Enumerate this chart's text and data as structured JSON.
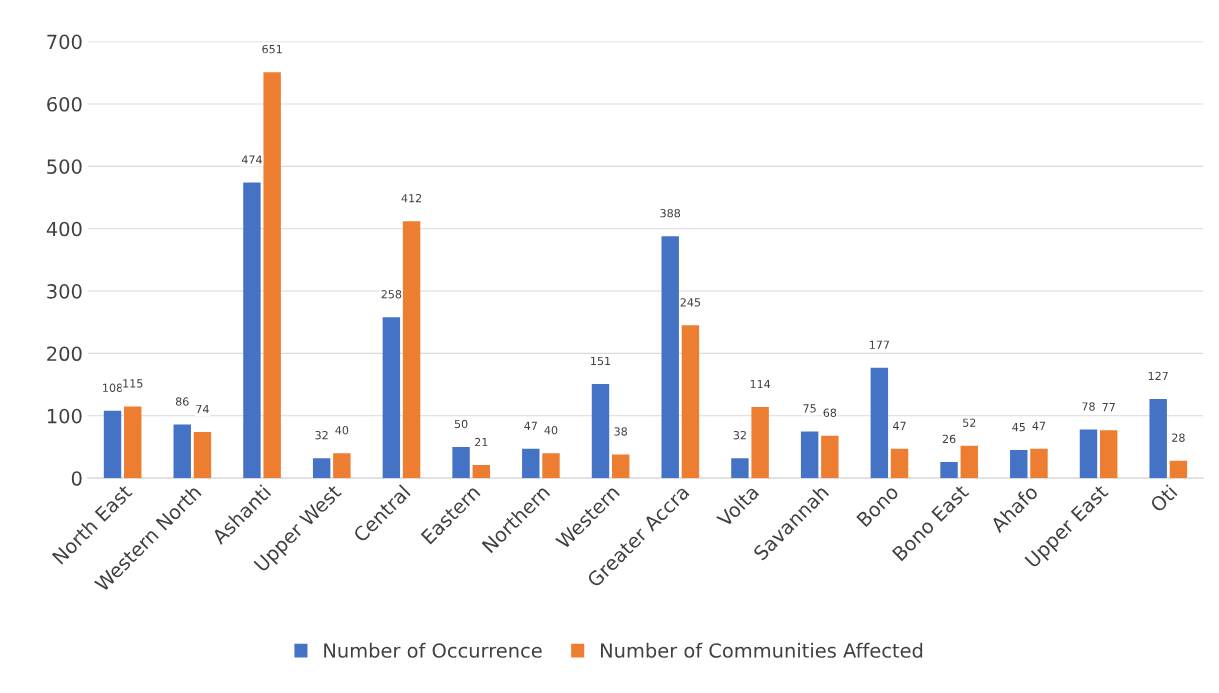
{
  "chart_data": {
    "type": "bar",
    "categories": [
      "North East",
      "Western North",
      "Ashanti",
      "Upper West",
      "Central",
      "Eastern",
      "Northern",
      "Western",
      "Greater Accra",
      "Volta",
      "Savannah",
      "Bono",
      "Bono East",
      "Ahafo",
      "Upper East",
      "Oti"
    ],
    "series": [
      {
        "name": "Number of Occurrence",
        "color": "#4472c4",
        "values": [
          108,
          86,
          474,
          32,
          258,
          50,
          47,
          151,
          388,
          32,
          75,
          177,
          26,
          45,
          78,
          127
        ]
      },
      {
        "name": "Number of Communities Affected",
        "color": "#ed7d31",
        "values": [
          115,
          74,
          651,
          40,
          412,
          21,
          40,
          38,
          245,
          114,
          68,
          47,
          52,
          47,
          77,
          28
        ]
      }
    ],
    "ylim": [
      0,
      700
    ],
    "yticks": [
      0,
      100,
      200,
      300,
      400,
      500,
      600,
      700
    ],
    "grid": "y",
    "legend": "bottom",
    "data_labels": true
  }
}
